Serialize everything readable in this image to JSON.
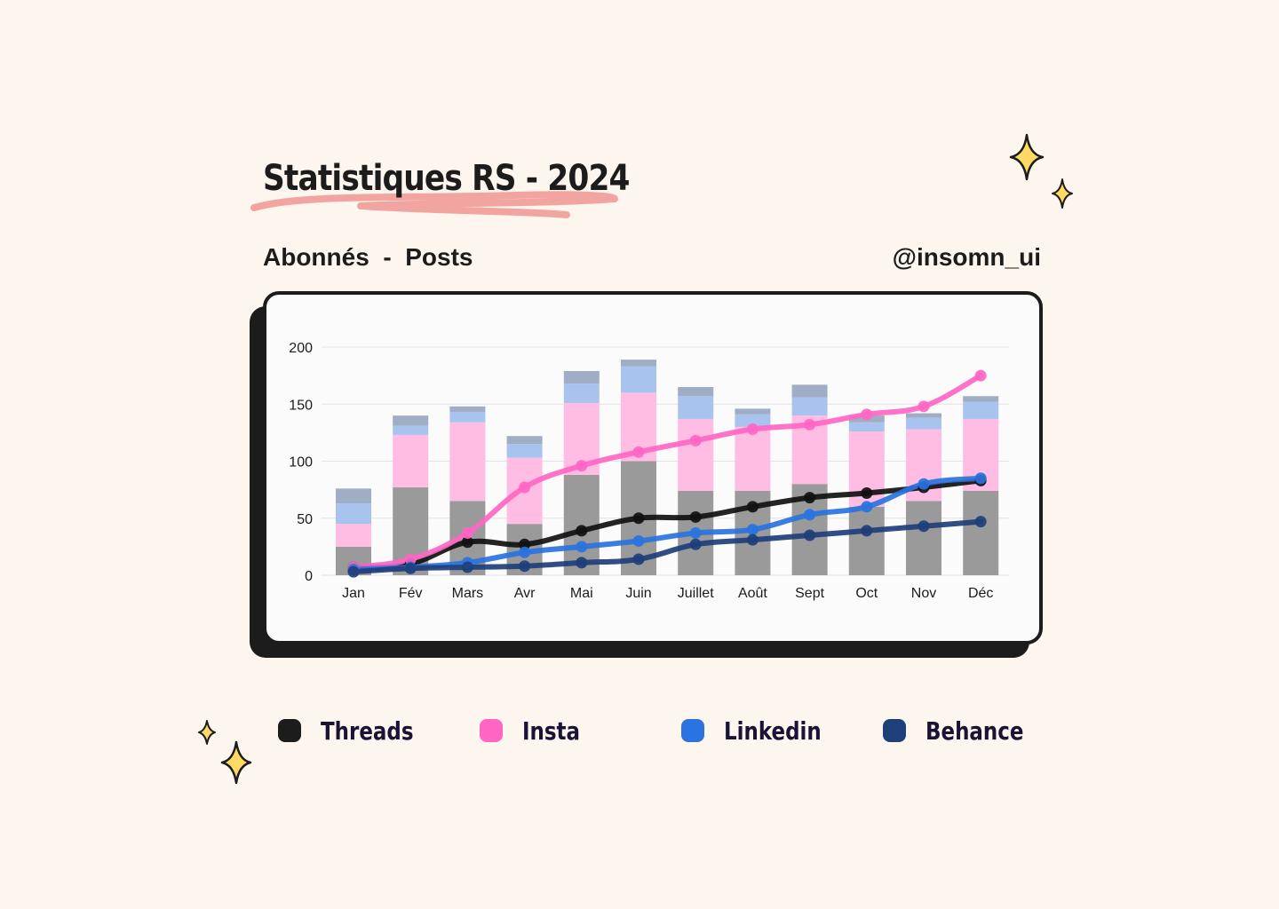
{
  "header": {
    "title": "Statistiques RS - 2024",
    "subtitle": "Abonnés  -  Posts",
    "handle": "@insomn_ui"
  },
  "colors": {
    "threads": "#111111",
    "insta": "#ff66c4",
    "linkedin": "#2a73e0",
    "behance": "#1f3f7a",
    "underline": "#f2a5a0",
    "sparkle": "#ffd966"
  },
  "legend": [
    {
      "label": "Threads",
      "color": "#1c1c1c"
    },
    {
      "label": "Insta",
      "color": "#ff66c4"
    },
    {
      "label": "Linkedin",
      "color": "#2a73e0"
    },
    {
      "label": "Behance",
      "color": "#1f3f7a"
    }
  ],
  "chart_data": {
    "type": "bar",
    "categories": [
      "Jan",
      "Fév",
      "Mars",
      "Avr",
      "Mai",
      "Juin",
      "Juillet",
      "Août",
      "Sept",
      "Oct",
      "Nov",
      "Déc"
    ],
    "ylim": [
      0,
      200
    ],
    "yticks": [
      0,
      50,
      100,
      150,
      200
    ],
    "grid": true,
    "bars": {
      "name": "Posts",
      "stacked": true,
      "series": [
        {
          "name": "Threads",
          "color": "#9a9a9a",
          "values": [
            25,
            77,
            65,
            45,
            88,
            100,
            74,
            74,
            80,
            60,
            65,
            74
          ]
        },
        {
          "name": "Insta",
          "color": "#ffbde3",
          "values": [
            20,
            46,
            69,
            58,
            63,
            60,
            63,
            56,
            60,
            66,
            63,
            63
          ]
        },
        {
          "name": "Linkedin",
          "color": "#a9c3ef",
          "values": [
            18,
            8,
            9,
            12,
            17,
            23,
            20,
            11,
            16,
            8,
            10,
            15
          ]
        },
        {
          "name": "Behance",
          "color": "#9fadc5",
          "values": [
            13,
            9,
            5,
            7,
            11,
            6,
            8,
            5,
            11,
            6,
            4,
            5
          ]
        }
      ]
    },
    "series": [
      {
        "name": "Threads",
        "color": "#111111",
        "values": [
          7,
          10,
          29,
          27,
          39,
          50,
          51,
          60,
          68,
          72,
          77,
          83
        ]
      },
      {
        "name": "Insta",
        "color": "#ff66c4",
        "values": [
          7,
          14,
          37,
          77,
          96,
          108,
          118,
          128,
          132,
          141,
          148,
          175
        ]
      },
      {
        "name": "Linkedin",
        "color": "#2a73e0",
        "values": [
          5,
          7,
          11,
          20,
          25,
          30,
          37,
          40,
          53,
          60,
          80,
          85
        ]
      },
      {
        "name": "Behance",
        "color": "#1f3f7a",
        "values": [
          3,
          6,
          7,
          8,
          11,
          14,
          27,
          31,
          35,
          39,
          43,
          47
        ]
      }
    ]
  }
}
